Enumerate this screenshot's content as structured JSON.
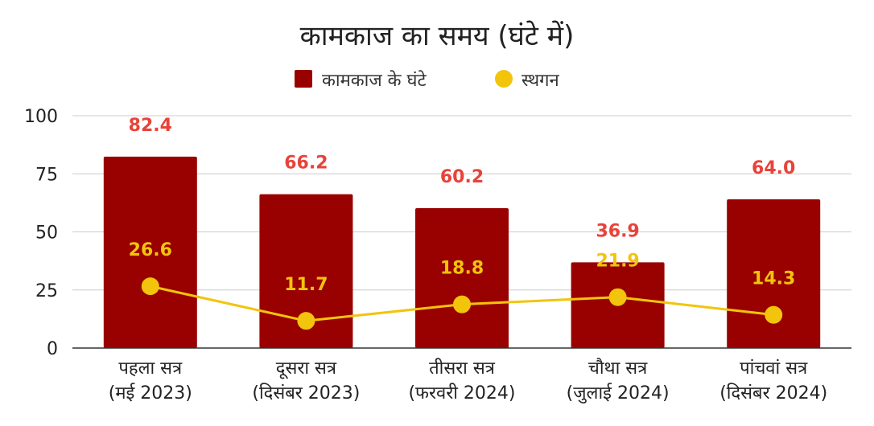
{
  "chart_data": {
    "type": "bar",
    "title": "कामकाज का समय (घंटे में)",
    "xlabel": "",
    "ylabel": "",
    "ylim": [
      0,
      100
    ],
    "yticks": [
      0,
      25,
      50,
      75,
      100
    ],
    "grid": true,
    "legend_position": "top",
    "categories": [
      [
        "पहला सत्र",
        "(मई 2023)"
      ],
      [
        "दूसरा सत्र",
        "(दिसंबर 2023)"
      ],
      [
        "तीसरा सत्र",
        "(फरवरी 2024)"
      ],
      [
        "चौथा सत्र",
        "(जुलाई 2024)"
      ],
      [
        "पांचवां सत्र",
        "(दिसंबर 2024)"
      ]
    ],
    "series": [
      {
        "name": "कामकाज के घंटे",
        "type": "bar",
        "color": "#990000",
        "label_color": "#e8433a",
        "values": [
          82.4,
          66.2,
          60.2,
          36.9,
          64.0
        ],
        "labels": [
          "82.4",
          "66.2",
          "60.2",
          "36.9",
          "64.0"
        ]
      },
      {
        "name": "स्थगन",
        "type": "line",
        "color": "#f2c40c",
        "label_color": "#f2c40c",
        "values": [
          26.6,
          11.7,
          18.8,
          21.9,
          14.3
        ],
        "labels": [
          "26.6",
          "11.7",
          "18.8",
          "21.9",
          "14.3"
        ]
      }
    ]
  }
}
